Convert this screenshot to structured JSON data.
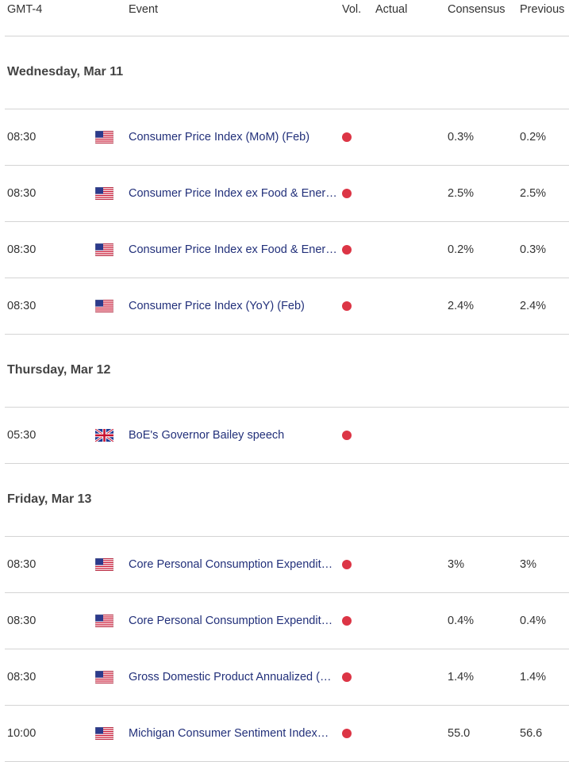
{
  "header": {
    "timezone": "GMT-4",
    "event": "Event",
    "vol": "Vol.",
    "actual": "Actual",
    "consensus": "Consensus",
    "previous": "Previous"
  },
  "colors": {
    "importance_high": "#dc3545",
    "event_link": "#22307a"
  },
  "days": [
    {
      "label": "Wednesday, Mar 11",
      "events": [
        {
          "time": "08:30",
          "flag": "us-flag-icon",
          "name": "Consumer Price Index (MoM) (Feb)",
          "actual": "",
          "consensus": "0.3%",
          "previous": "0.2%"
        },
        {
          "time": "08:30",
          "flag": "us-flag-icon",
          "name": "Consumer Price Index ex Food & Ener…",
          "actual": "",
          "consensus": "2.5%",
          "previous": "2.5%"
        },
        {
          "time": "08:30",
          "flag": "us-flag-icon",
          "name": "Consumer Price Index ex Food & Ener…",
          "actual": "",
          "consensus": "0.2%",
          "previous": "0.3%"
        },
        {
          "time": "08:30",
          "flag": "us-flag-icon",
          "name": "Consumer Price Index (YoY) (Feb)",
          "actual": "",
          "consensus": "2.4%",
          "previous": "2.4%"
        }
      ]
    },
    {
      "label": "Thursday, Mar 12",
      "events": [
        {
          "time": "05:30",
          "flag": "uk-flag-icon",
          "name": "BoE's Governor Bailey speech",
          "actual": "",
          "consensus": "",
          "previous": ""
        }
      ]
    },
    {
      "label": "Friday, Mar 13",
      "events": [
        {
          "time": "08:30",
          "flag": "us-flag-icon",
          "name": "Core Personal Consumption Expendit…",
          "actual": "",
          "consensus": "3%",
          "previous": "3%"
        },
        {
          "time": "08:30",
          "flag": "us-flag-icon",
          "name": "Core Personal Consumption Expendit…",
          "actual": "",
          "consensus": "0.4%",
          "previous": "0.4%"
        },
        {
          "time": "08:30",
          "flag": "us-flag-icon",
          "name": "Gross Domestic Product Annualized (…",
          "actual": "",
          "consensus": "1.4%",
          "previous": "1.4%"
        },
        {
          "time": "10:00",
          "flag": "us-flag-icon",
          "name": "Michigan Consumer Sentiment Index…",
          "actual": "",
          "consensus": "55.0",
          "previous": "56.6"
        }
      ]
    }
  ]
}
